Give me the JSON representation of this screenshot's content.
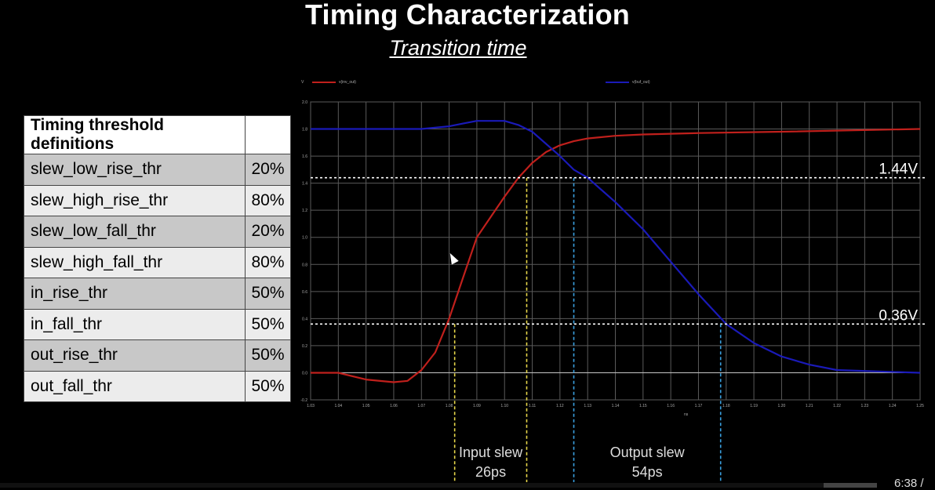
{
  "title": "Timing Characterization",
  "subtitle": "Transition time",
  "table": {
    "header": "Timing threshold definitions",
    "rows": [
      {
        "name": "slew_low_rise_thr",
        "value": "20%"
      },
      {
        "name": "slew_high_rise_thr",
        "value": "80%"
      },
      {
        "name": "slew_low_fall_thr",
        "value": "20%"
      },
      {
        "name": "slew_high_fall_thr",
        "value": "80%"
      },
      {
        "name": "in_rise_thr",
        "value": "50%"
      },
      {
        "name": "in_fall_thr",
        "value": "50%"
      },
      {
        "name": "out_rise_thr",
        "value": "50%"
      },
      {
        "name": "out_fall_thr",
        "value": "50%"
      }
    ]
  },
  "chart_data": {
    "type": "line",
    "ylim": [
      -0.2,
      2.0
    ],
    "xlim": [
      1.03,
      1.25
    ],
    "y_ticks": [
      "-0.2",
      "0.0",
      "0.2",
      "0.4",
      "0.6",
      "0.8",
      "1.0",
      "1.2",
      "1.4",
      "1.6",
      "1.8",
      "2.0"
    ],
    "x_ticks": [
      "1.03",
      "1.04",
      "1.05",
      "1.06",
      "1.07",
      "1.08",
      "1.09",
      "1.10",
      "1.11",
      "1.12",
      "1.13",
      "1.14",
      "1.15",
      "1.16",
      "1.17",
      "1.18",
      "1.19",
      "1.20",
      "1.21",
      "1.22",
      "1.23",
      "1.24",
      "1.25"
    ],
    "ylabel": "V",
    "xlabel": "ns",
    "series": [
      {
        "name": "v(inv_out)",
        "color": "#c0201c",
        "x": [
          1.03,
          1.04,
          1.05,
          1.06,
          1.065,
          1.07,
          1.075,
          1.08,
          1.085,
          1.09,
          1.1,
          1.105,
          1.11,
          1.115,
          1.12,
          1.125,
          1.13,
          1.14,
          1.15,
          1.17,
          1.2,
          1.25
        ],
        "y": [
          0.0,
          0.0,
          -0.05,
          -0.07,
          -0.06,
          0.02,
          0.15,
          0.4,
          0.7,
          1.0,
          1.3,
          1.44,
          1.55,
          1.63,
          1.68,
          1.71,
          1.73,
          1.75,
          1.76,
          1.77,
          1.78,
          1.8
        ]
      },
      {
        "name": "v(buf_out)",
        "color": "#1a1ab8",
        "x": [
          1.03,
          1.06,
          1.07,
          1.08,
          1.085,
          1.09,
          1.095,
          1.1,
          1.105,
          1.11,
          1.12,
          1.125,
          1.13,
          1.14,
          1.15,
          1.16,
          1.17,
          1.175,
          1.18,
          1.19,
          1.2,
          1.21,
          1.22,
          1.25
        ],
        "y": [
          1.8,
          1.8,
          1.8,
          1.82,
          1.84,
          1.86,
          1.86,
          1.86,
          1.83,
          1.78,
          1.6,
          1.5,
          1.44,
          1.26,
          1.06,
          0.82,
          0.58,
          0.47,
          0.36,
          0.22,
          0.12,
          0.06,
          0.02,
          0.0
        ]
      }
    ],
    "annotations": {
      "hlines": [
        {
          "y": 1.44,
          "label": "1.44V"
        },
        {
          "y": 0.36,
          "label": "0.36V"
        }
      ],
      "vlines": [
        {
          "x": 1.082,
          "color": "#e6d64a"
        },
        {
          "x": 1.108,
          "color": "#e6d64a"
        },
        {
          "x": 1.125,
          "color": "#3aa0e0"
        },
        {
          "x": 1.178,
          "color": "#3aa0e0"
        }
      ],
      "spans": [
        {
          "label": "Input slew",
          "value": "26ps",
          "x_from": 1.082,
          "x_to": 1.108
        },
        {
          "label": "Output slew",
          "value": "54ps",
          "x_from": 1.125,
          "x_to": 1.178
        }
      ]
    }
  },
  "player": {
    "time": "6:38 /"
  }
}
